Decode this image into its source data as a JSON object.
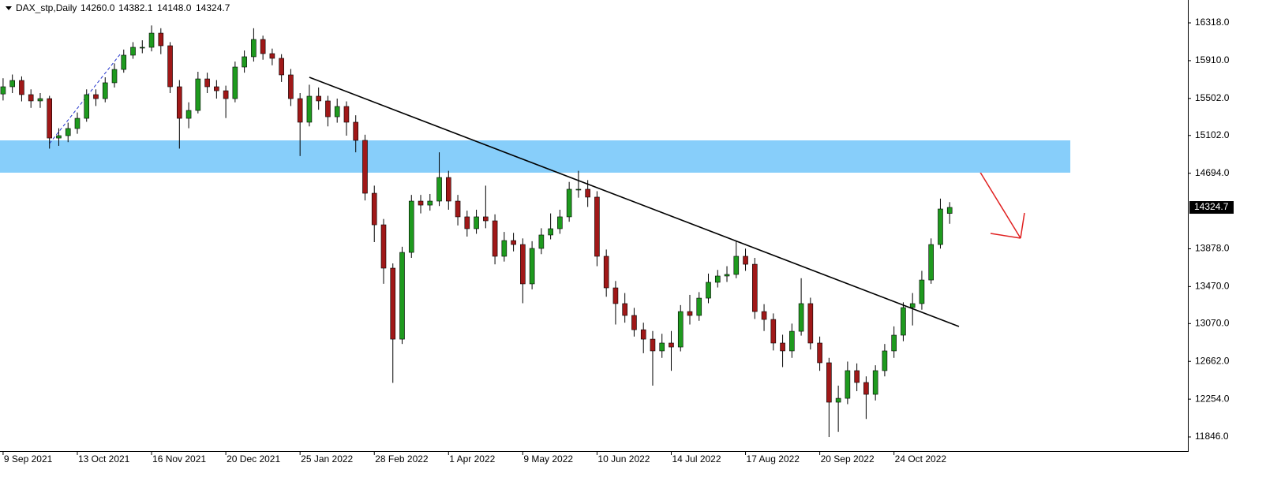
{
  "chart_data": {
    "type": "candlestick",
    "title": "DAX_stp,Daily",
    "header_labels": [
      "14260.0",
      "14382.1",
      "14148.0",
      "14324.7"
    ],
    "x": [
      0,
      3,
      6,
      9,
      12,
      15,
      18,
      21,
      24,
      27,
      30,
      33,
      36,
      39,
      42,
      45,
      48,
      51,
      54,
      57,
      60,
      63,
      66,
      69,
      72,
      75,
      78,
      81,
      84,
      87,
      90,
      93,
      96,
      99,
      102,
      105,
      108,
      111,
      114,
      117,
      120,
      123,
      126,
      129,
      132,
      135,
      138,
      141,
      144,
      147,
      150,
      153,
      156,
      159,
      162,
      165,
      168,
      171,
      174,
      177,
      180,
      183,
      186,
      189,
      192,
      195,
      198,
      201,
      204,
      207,
      210,
      213,
      216,
      219,
      222,
      225,
      228,
      231,
      234,
      237,
      240,
      243,
      246,
      249,
      252,
      255,
      258,
      261,
      264,
      267,
      270,
      273,
      276,
      279,
      282,
      285,
      288,
      291,
      294,
      297,
      300,
      303,
      306
    ],
    "open": [
      15550,
      15628,
      15696,
      15543,
      15475,
      15500,
      15074,
      15100,
      15177,
      15287,
      15543,
      15500,
      15671,
      15815,
      15969,
      16054,
      16054,
      16207,
      16071,
      15628,
      15287,
      15372,
      15713,
      15628,
      15585,
      15500,
      15841,
      15952,
      16139,
      15986,
      15935,
      15756,
      15500,
      15245,
      15526,
      15475,
      15304,
      15415,
      15245,
      15049,
      14478,
      14137,
      13669,
      12902,
      13839,
      14393,
      14350,
      14393,
      14648,
      14393,
      14223,
      14095,
      14223,
      14180,
      13797,
      13967,
      13924,
      13499,
      13882,
      14027,
      14095,
      14223,
      14521,
      14521,
      14436,
      13797,
      13456,
      13286,
      13158,
      13004,
      12902,
      12775,
      12860,
      12817,
      13200,
      13158,
      13345,
      13516,
      13584,
      13601,
      13797,
      13711,
      13200,
      13115,
      12860,
      12775,
      12987,
      13286,
      12860,
      12647,
      12221,
      12263,
      12562,
      12434,
      12306,
      12562,
      12775,
      12945,
      13243,
      13286,
      13541,
      13924,
      14260
    ],
    "high": [
      15720,
      15760,
      15740,
      15600,
      15560,
      15530,
      15180,
      15240,
      15350,
      15600,
      15600,
      15730,
      15880,
      16030,
      16110,
      16130,
      16290,
      16260,
      16110,
      15700,
      15460,
      15790,
      15780,
      15700,
      15640,
      15900,
      16020,
      16260,
      16180,
      16040,
      15980,
      15820,
      15560,
      15650,
      15620,
      15530,
      15500,
      15470,
      15320,
      15110,
      14560,
      14200,
      13720,
      13900,
      14460,
      14460,
      14470,
      14920,
      14720,
      14460,
      14290,
      14300,
      14560,
      14250,
      14060,
      14050,
      13990,
      13960,
      14100,
      14260,
      14300,
      14600,
      14720,
      14620,
      14500,
      13870,
      13530,
      13400,
      13240,
      13080,
      12990,
      12960,
      12990,
      13270,
      13380,
      13410,
      13610,
      13650,
      13690,
      13960,
      13880,
      13780,
      13280,
      13180,
      12950,
      13070,
      13560,
      13350,
      12930,
      12700,
      12400,
      12660,
      12640,
      12500,
      12620,
      12850,
      13040,
      13300,
      13400,
      13640,
      13990,
      14420,
      14382.1
    ],
    "low": [
      15480,
      15560,
      15470,
      15400,
      15400,
      14960,
      14990,
      15030,
      15120,
      15250,
      15420,
      15460,
      15620,
      15780,
      15930,
      15990,
      16010,
      15980,
      15560,
      14960,
      15180,
      15340,
      15560,
      15500,
      15290,
      15460,
      15780,
      15900,
      15920,
      15860,
      15680,
      15420,
      14880,
      15200,
      15380,
      15200,
      15240,
      15100,
      14920,
      14400,
      13950,
      13500,
      12430,
      12850,
      13780,
      14260,
      14290,
      14340,
      14300,
      14130,
      14010,
      14040,
      14100,
      13710,
      13740,
      13850,
      13290,
      13440,
      13820,
      13980,
      14040,
      14170,
      14430,
      14330,
      13690,
      13360,
      13060,
      13080,
      12930,
      12750,
      12400,
      12700,
      12560,
      12770,
      13060,
      13100,
      13290,
      13460,
      13520,
      13560,
      13640,
      13120,
      12990,
      12780,
      12600,
      12700,
      12940,
      12790,
      12560,
      11846,
      11900,
      12200,
      12340,
      12040,
      12240,
      12500,
      12700,
      12880,
      13050,
      13220,
      13500,
      13880,
      14148
    ],
    "close": [
      15628,
      15696,
      15543,
      15475,
      15500,
      15074,
      15100,
      15177,
      15287,
      15543,
      15500,
      15671,
      15815,
      15969,
      16054,
      16054,
      16207,
      16071,
      15628,
      15287,
      15372,
      15713,
      15628,
      15585,
      15500,
      15841,
      15952,
      16139,
      15986,
      15935,
      15756,
      15500,
      15245,
      15526,
      15475,
      15304,
      15415,
      15245,
      15049,
      14478,
      14137,
      13669,
      12902,
      13839,
      14393,
      14350,
      14393,
      14648,
      14393,
      14223,
      14095,
      14223,
      14180,
      13797,
      13967,
      13924,
      13499,
      13882,
      14027,
      14095,
      14223,
      14521,
      14521,
      14436,
      13797,
      13456,
      13286,
      13158,
      13004,
      12902,
      12775,
      12860,
      12817,
      13200,
      13158,
      13345,
      13516,
      13584,
      13601,
      13797,
      13711,
      13200,
      13115,
      12860,
      12775,
      12987,
      13286,
      12860,
      12647,
      12221,
      12263,
      12562,
      12434,
      12306,
      12562,
      12775,
      12945,
      13243,
      13286,
      13541,
      13924,
      14308,
      14324.7
    ],
    "up_color": "#1e9a1e",
    "down_color": "#a01818",
    "wick_color": "#000000",
    "xlim": [
      -1,
      383
    ],
    "ylim": [
      11693,
      16565
    ],
    "xticks": [
      {
        "value": 0,
        "label": "9 Sep 2021"
      },
      {
        "value": 24,
        "label": "13 Oct 2021"
      },
      {
        "value": 48,
        "label": "16 Nov 2021"
      },
      {
        "value": 72,
        "label": "20 Dec 2021"
      },
      {
        "value": 96,
        "label": "25 Jan 2022"
      },
      {
        "value": 120,
        "label": "28 Feb 2022"
      },
      {
        "value": 144,
        "label": "1 Apr 2022"
      },
      {
        "value": 168,
        "label": "9 May 2022"
      },
      {
        "value": 192,
        "label": "10 Jun 2022"
      },
      {
        "value": 216,
        "label": "14 Jul 2022"
      },
      {
        "value": 240,
        "label": "17 Aug 2022"
      },
      {
        "value": 264,
        "label": "20 Sep 2022"
      },
      {
        "value": 288,
        "label": "24 Oct 2022"
      }
    ],
    "yticks": [
      {
        "value": 16318,
        "label": "16318.0"
      },
      {
        "value": 15910,
        "label": "15910.0"
      },
      {
        "value": 15502,
        "label": "15502.0"
      },
      {
        "value": 15102,
        "label": "15102.0"
      },
      {
        "value": 14694,
        "label": "14694.0"
      },
      {
        "value": 13878,
        "label": "13878.0"
      },
      {
        "value": 13470,
        "label": "13470.0"
      },
      {
        "value": 13070,
        "label": "13070.0"
      },
      {
        "value": 12662,
        "label": "12662.0"
      },
      {
        "value": 12254,
        "label": "12254.0"
      },
      {
        "value": 11846,
        "label": "11846.0"
      }
    ],
    "last_price": {
      "value": 14324.7,
      "label": "14324.7"
    },
    "zone": {
      "from": 14700,
      "to": 15049,
      "x": [
        -1,
        345
      ],
      "color": "#87cefa"
    },
    "trendline": {
      "x": [
        99,
        309
      ],
      "y": [
        15730,
        13039
      ],
      "color": "#000000"
    },
    "dashed_line": {
      "x": [
        15,
        38
      ],
      "y": [
        15015,
        15986
      ],
      "color": "#2233cc"
    }
  }
}
